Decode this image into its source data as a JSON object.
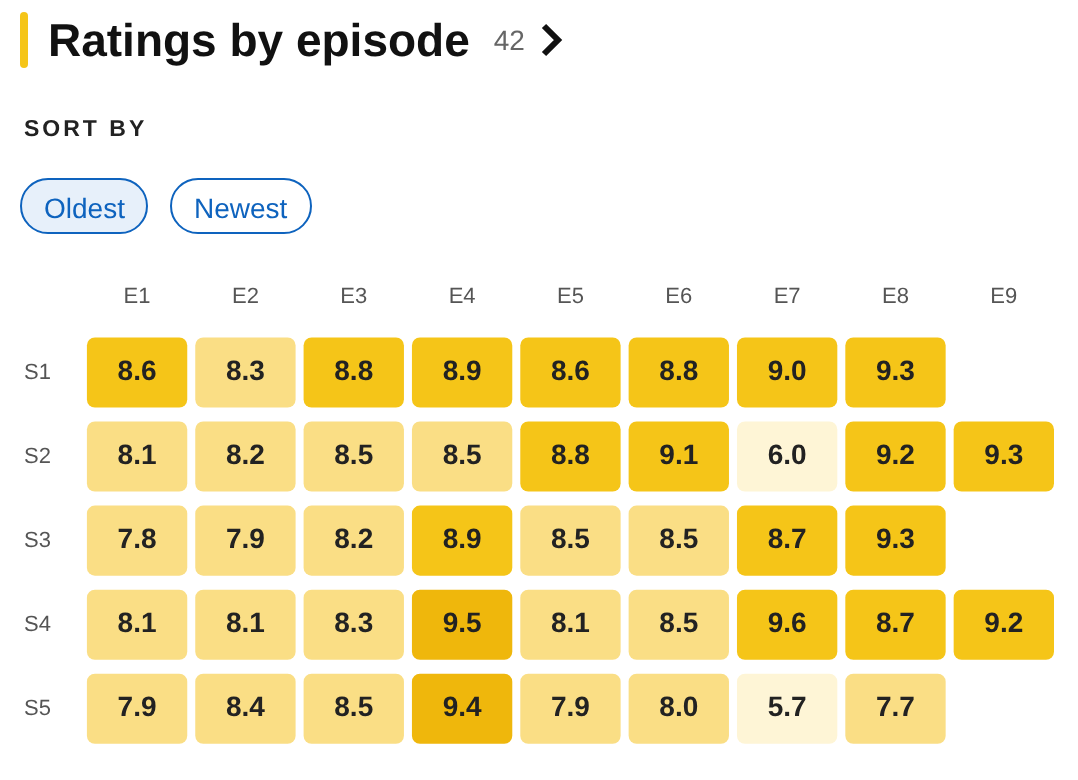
{
  "chart_data": {
    "type": "heatmap",
    "title": "Ratings by episode",
    "cell_labels": [
      [
        "8.6",
        "8.3",
        "8.8",
        "8.9",
        "8.6",
        "8.8",
        "9.0",
        "9.3",
        null
      ],
      [
        "8.1",
        "8.2",
        "8.5",
        "8.5",
        "8.8",
        "9.1",
        "6.0",
        "9.2",
        "9.3"
      ],
      [
        "7.8",
        "7.9",
        "8.2",
        "8.9",
        "8.5",
        "8.5",
        "8.7",
        "9.3",
        null
      ],
      [
        "8.1",
        "8.1",
        "8.3",
        "9.5",
        "8.1",
        "8.5",
        "9.6",
        "8.7",
        "9.2"
      ],
      [
        "7.9",
        "8.4",
        "8.5",
        "9.4",
        "7.9",
        "8.0",
        "5.7",
        "7.7",
        null
      ]
    ],
    "annotations": [
      "42",
      "SORT BY",
      "Oldest",
      "Newest"
    ],
    "categories": [
      "E1",
      "E2",
      "E3",
      "E4",
      "E5",
      "E6",
      "E7",
      "E8",
      "E9"
    ],
    "y_categories": [
      "S1",
      "S2",
      "S3",
      "S4",
      "S5"
    ],
    "cells": [
      [
        8.6,
        8.3,
        8.8,
        8.9,
        8.6,
        8.8,
        9.0,
        9.3,
        null
      ],
      [
        8.1,
        8.2,
        8.5,
        8.5,
        8.8,
        9.1,
        6.0,
        9.2,
        9.3
      ],
      [
        7.8,
        7.9,
        8.2,
        8.9,
        8.5,
        8.5,
        8.7,
        9.3,
        null
      ],
      [
        8.1,
        8.1,
        8.3,
        9.5,
        8.1,
        8.5,
        9.6,
        8.7,
        9.2
      ],
      [
        7.9,
        8.4,
        8.5,
        9.4,
        7.9,
        8.0,
        5.7,
        7.7,
        null
      ]
    ],
    "colors": [
      [
        "#f5c518",
        "#fade85",
        "#f5c518",
        "#f5c518",
        "#f5c518",
        "#f5c518",
        "#f5c518",
        "#f5c518",
        null
      ],
      [
        "#fade85",
        "#fade85",
        "#fade85",
        "#fade85",
        "#f5c518",
        "#f5c518",
        "#fef5d6",
        "#f5c518",
        "#f5c518"
      ],
      [
        "#fade85",
        "#fade85",
        "#fade85",
        "#f5c518",
        "#fade85",
        "#fade85",
        "#f5c518",
        "#f5c518",
        null
      ],
      [
        "#fade85",
        "#fade85",
        "#fade85",
        "#efb70c",
        "#fade85",
        "#fade85",
        "#f5c518",
        "#f5c518",
        "#f5c518"
      ],
      [
        "#fade85",
        "#fade85",
        "#fade85",
        "#efb70c",
        "#fade85",
        "#fade85",
        "#fef5d6",
        "#fade85",
        null
      ]
    ]
  }
}
